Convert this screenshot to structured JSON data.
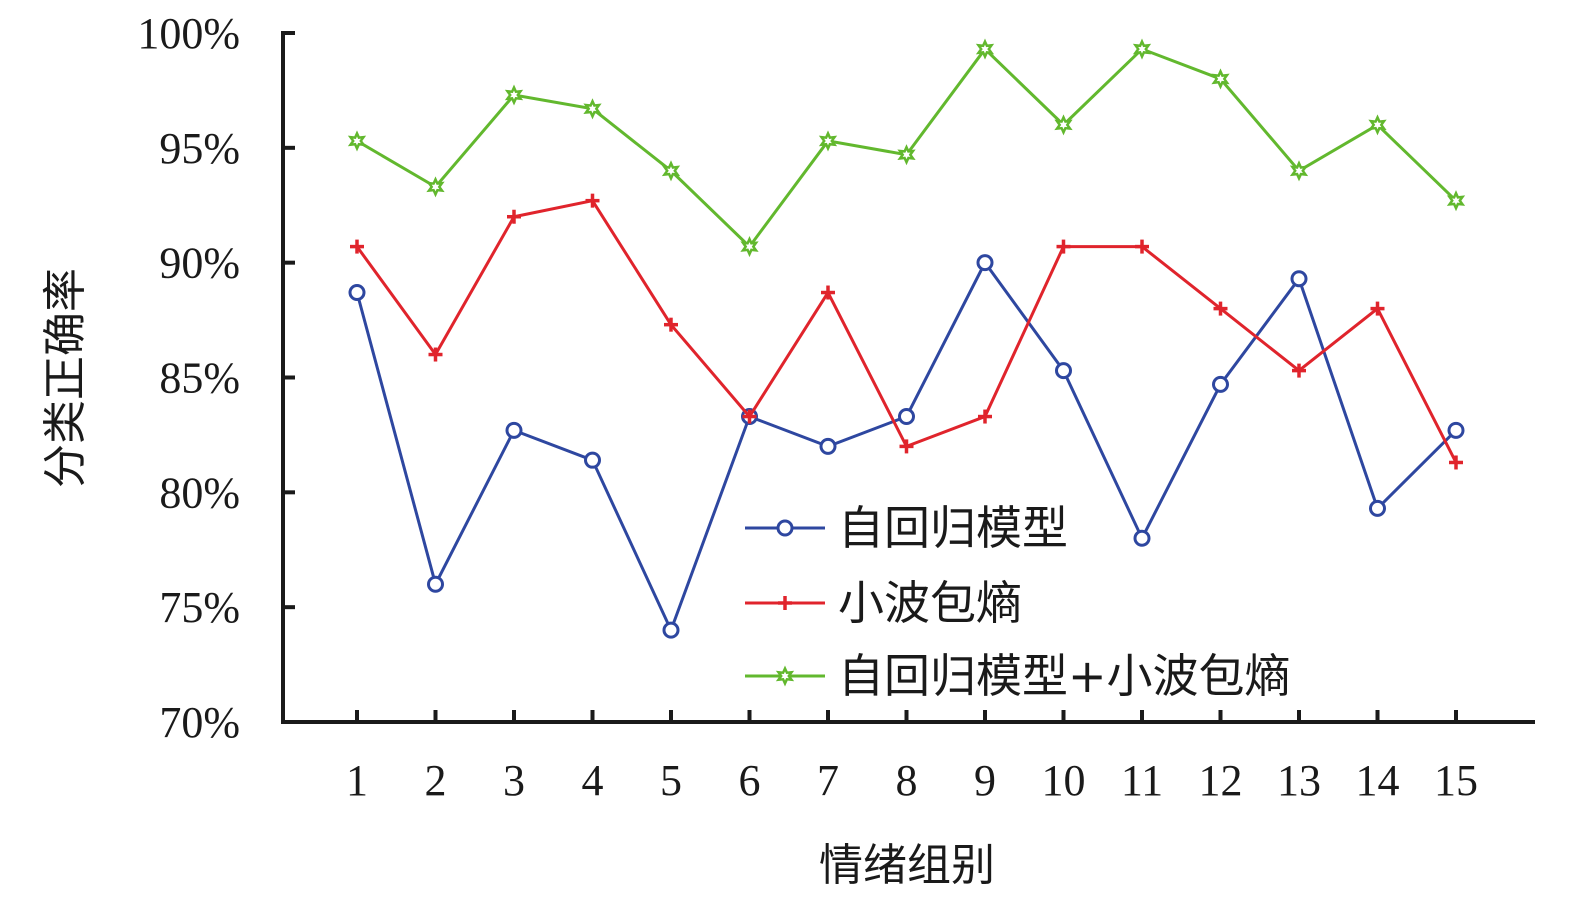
{
  "chart_data": {
    "type": "line",
    "title": "",
    "xlabel": "情绪组别",
    "ylabel": "分类正确率",
    "x": [
      1,
      2,
      3,
      4,
      5,
      6,
      7,
      8,
      9,
      10,
      11,
      12,
      13,
      14,
      15
    ],
    "ylim": [
      0.7,
      1.0
    ],
    "yticks": [
      0.7,
      0.75,
      0.8,
      0.85,
      0.9,
      0.95,
      1.0
    ],
    "ytick_labels": [
      "70%",
      "75%",
      "80%",
      "85%",
      "90%",
      "95%",
      "100%"
    ],
    "grid": false,
    "legend_position": "center-right",
    "series": [
      {
        "name": "自回归模型",
        "color": "#2e47a0",
        "marker": "circle",
        "values": [
          0.887,
          0.76,
          0.827,
          0.814,
          0.74,
          0.833,
          0.82,
          0.833,
          0.9,
          0.853,
          0.78,
          0.847,
          0.893,
          0.793,
          0.827
        ]
      },
      {
        "name": "小波包熵",
        "color": "#e0242c",
        "marker": "plus",
        "values": [
          0.907,
          0.86,
          0.92,
          0.927,
          0.873,
          0.833,
          0.887,
          0.82,
          0.833,
          0.907,
          0.907,
          0.88,
          0.853,
          0.88,
          0.813
        ]
      },
      {
        "name": "自回归模型+小波包熵",
        "color": "#62b82e",
        "marker": "star",
        "values": [
          0.953,
          0.933,
          0.973,
          0.967,
          0.94,
          0.907,
          0.953,
          0.947,
          0.993,
          0.96,
          0.993,
          0.98,
          0.94,
          0.96,
          0.927
        ]
      }
    ]
  }
}
